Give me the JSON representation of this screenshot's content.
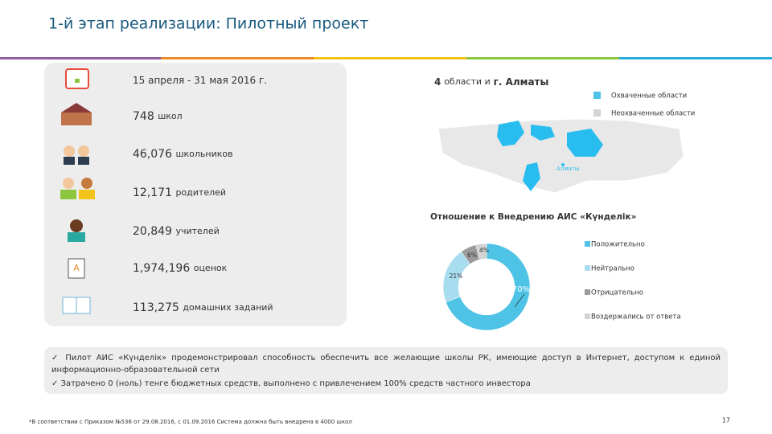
{
  "header": {
    "title": "1-й этап реализации: Пилотный проект"
  },
  "stats": [
    {
      "number": "15 апреля - 31 мая 2016 г.",
      "unit": null
    },
    {
      "number": "748",
      "unit": "школ"
    },
    {
      "number": "46,076",
      "unit": "школьников"
    },
    {
      "number": "12,171",
      "unit": "родителей"
    },
    {
      "number": "20,849",
      "unit": "учителей"
    },
    {
      "number": "1,974,196",
      "unit": "оценок"
    },
    {
      "number": "113,275",
      "unit": "домашних заданий"
    }
  ],
  "map": {
    "title_number": "4",
    "title_text": "области и",
    "title_city": "г. Алматы",
    "legend": [
      "Охваченные области",
      "Неохваченные области"
    ],
    "city_label": "Алматы"
  },
  "chart_data": {
    "type": "pie",
    "title": "Отношение к Внедрению АИС «Күнделік»",
    "categories": [
      "Положительно",
      "Нейтрально",
      "Отрицательно",
      "Воздержались от ответа"
    ],
    "values": [
      70,
      21,
      6,
      4
    ],
    "value_labels": [
      "70%",
      "21%",
      "6%",
      "4%"
    ],
    "colors": [
      "#4ec3e6",
      "#a8dcef",
      "#9b9b9b",
      "#d3d3d3"
    ]
  },
  "notes": [
    "Пилот АИС «Күнделік» продемонстрировал способность обеспечить все желающие школы РК, имеющие доступ в Интернет, доступом к единой информационно-образовательной сети",
    "Затрачено 0 (ноль) тенге бюджетных средств, выполнено с привлечением 100% средств частного инвестора"
  ],
  "footnote": "*В соответствии с Приказом №536 от 29.08.2016, с 01.09.2016 Система должна быть внедрена в 4000 школ",
  "page_number": "17"
}
